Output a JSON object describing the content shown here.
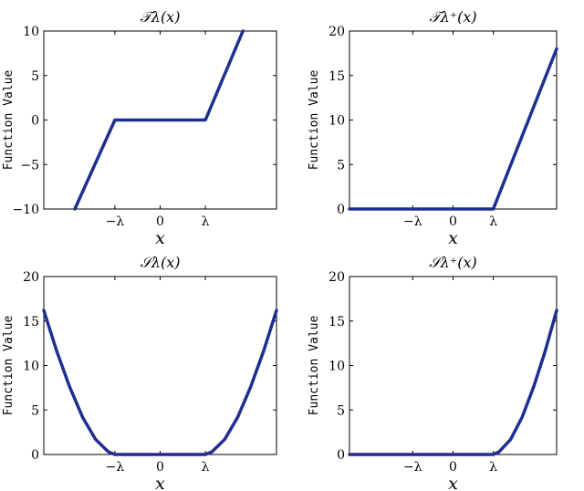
{
  "colors": {
    "series": "#1f2f8f"
  },
  "chart_data": [
    {
      "type": "line",
      "title": "𝒯λ(x)",
      "xlabel": "x",
      "ylabel": "Function Value",
      "xlim": [
        -4.5,
        4.5
      ],
      "ylim": [
        -10,
        10
      ],
      "yticks": [
        -10,
        -5,
        0,
        5,
        10
      ],
      "xticks": [
        {
          "value": -1.75,
          "label": "−λ"
        },
        {
          "value": 0,
          "label": "0"
        },
        {
          "value": 1.75,
          "label": "λ"
        }
      ],
      "series": [
        {
          "x": [
            -3.3,
            -1.75,
            1.75,
            3.2
          ],
          "y": [
            -10,
            0,
            0,
            10
          ]
        }
      ]
    },
    {
      "type": "line",
      "title": "𝒯λ⁺(x)",
      "xlabel": "x",
      "ylabel": "Function Value",
      "xlim": [
        -4.5,
        4.5
      ],
      "ylim": [
        0,
        20
      ],
      "yticks": [
        0,
        5,
        10,
        15,
        20
      ],
      "xticks": [
        {
          "value": -1.75,
          "label": "−λ"
        },
        {
          "value": 0,
          "label": "0"
        },
        {
          "value": 1.75,
          "label": "λ"
        }
      ],
      "series": [
        {
          "x": [
            -4.5,
            1.75,
            4.5
          ],
          "y": [
            0,
            0,
            18
          ]
        }
      ]
    },
    {
      "type": "line",
      "title": "𝒮λ(x)",
      "xlabel": "x",
      "ylabel": "Function Value",
      "xlim": [
        -4.5,
        4.5
      ],
      "ylim": [
        0,
        20
      ],
      "yticks": [
        0,
        5,
        10,
        15,
        20
      ],
      "xticks": [
        {
          "value": -1.75,
          "label": "−λ"
        },
        {
          "value": 0,
          "label": "0"
        },
        {
          "value": 1.75,
          "label": "λ"
        }
      ],
      "series": [
        {
          "x": [
            -4.5,
            -4.0,
            -3.5,
            -3.0,
            -2.5,
            -2.0,
            -1.75,
            1.75,
            2.0,
            2.5,
            3.0,
            3.5,
            4.0,
            4.5
          ],
          "y": [
            16.2,
            11.6,
            7.6,
            4.2,
            1.7,
            0.3,
            0,
            0,
            0.3,
            1.7,
            4.2,
            7.6,
            11.6,
            16.2
          ]
        }
      ]
    },
    {
      "type": "line",
      "title": "𝒮λ⁺(x)",
      "xlabel": "x",
      "ylabel": "Function Value",
      "xlim": [
        -4.5,
        4.5
      ],
      "ylim": [
        0,
        20
      ],
      "yticks": [
        0,
        5,
        10,
        15,
        20
      ],
      "xticks": [
        {
          "value": -1.75,
          "label": "−λ"
        },
        {
          "value": 0,
          "label": "0"
        },
        {
          "value": 1.75,
          "label": "λ"
        }
      ],
      "series": [
        {
          "x": [
            -4.5,
            1.75,
            2.0,
            2.5,
            3.0,
            3.5,
            4.0,
            4.5
          ],
          "y": [
            0,
            0,
            0.3,
            1.7,
            4.2,
            7.6,
            11.6,
            16.2
          ]
        }
      ]
    }
  ]
}
